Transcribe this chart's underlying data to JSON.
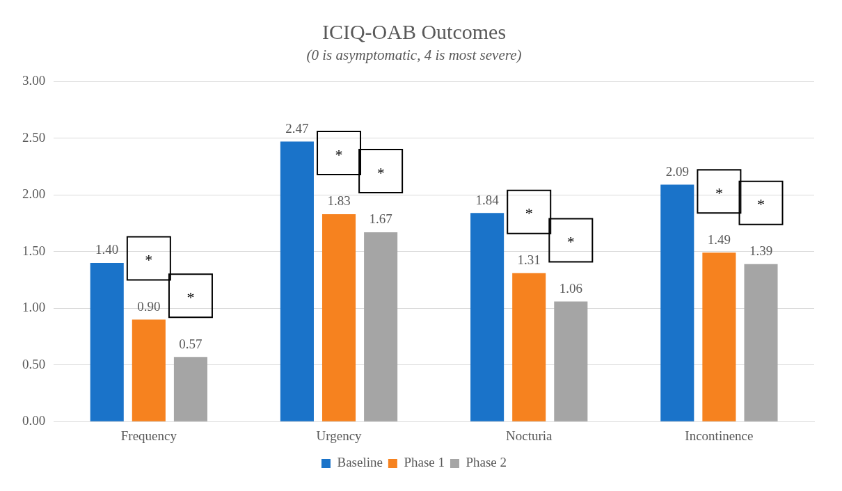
{
  "chart_data": {
    "type": "bar",
    "title": "ICIQ-OAB Outcomes",
    "subtitle": "(0 is asymptomatic, 4 is most severe)",
    "categories": [
      "Frequency",
      "Urgency",
      "Nocturia",
      "Incontinence"
    ],
    "series": [
      {
        "name": "Baseline",
        "color": "#1a73c9",
        "values": [
          1.4,
          2.47,
          1.84,
          2.09
        ],
        "value_labels": [
          "1.40",
          "2.47",
          "1.84",
          "2.09"
        ]
      },
      {
        "name": "Phase 1",
        "color": "#f6821f",
        "values": [
          0.9,
          1.83,
          1.31,
          1.49
        ],
        "value_labels": [
          "0.90",
          "1.83",
          "1.31",
          "1.49"
        ]
      },
      {
        "name": "Phase 2",
        "color": "#a5a5a5",
        "values": [
          0.57,
          1.67,
          1.06,
          1.39
        ],
        "value_labels": [
          "0.57",
          "1.67",
          "1.06",
          "1.39"
        ]
      }
    ],
    "ylim": [
      0,
      3
    ],
    "yticks": [
      {
        "value": 0,
        "label": "0.00"
      },
      {
        "value": 0.5,
        "label": "0.50"
      },
      {
        "value": 1,
        "label": "1.00"
      },
      {
        "value": 1.5,
        "label": "1.50"
      },
      {
        "value": 2,
        "label": "2.00"
      },
      {
        "value": 2.5,
        "label": "2.50"
      },
      {
        "value": 3,
        "label": "3.00"
      }
    ],
    "grid": "y",
    "legend": "bottom",
    "annotations": [
      "*",
      "*",
      "*",
      "*",
      "*",
      "*",
      "*",
      "*"
    ]
  }
}
